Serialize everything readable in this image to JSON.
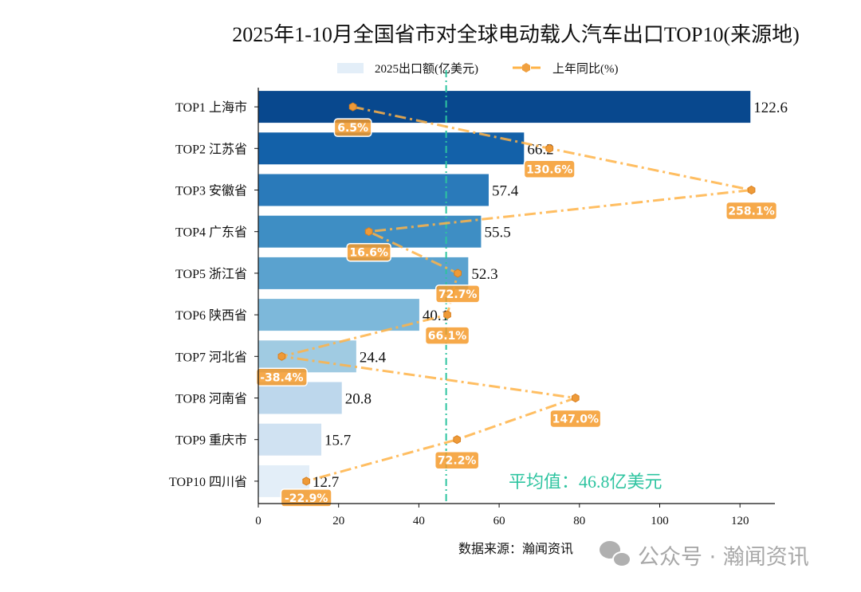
{
  "chart_data": {
    "type": "bar",
    "orientation": "horizontal",
    "title": "2025年1-10月全国省市对全球电动载人汽车出口TOP10(来源地)",
    "categories": [
      "TOP1 上海市",
      "TOP2 江苏省",
      "TOP3 安徽省",
      "TOP4 广东省",
      "TOP5 浙江省",
      "TOP6 陕西省",
      "TOP7 河北省",
      "TOP8 河南省",
      "TOP9 重庆市",
      "TOP10 四川省"
    ],
    "series": [
      {
        "name": "2025出口额(亿美元)",
        "type": "bar",
        "values": [
          122.6,
          66.2,
          57.4,
          55.5,
          52.3,
          40.1,
          24.4,
          20.8,
          15.7,
          12.7
        ],
        "colors": [
          "#08488e",
          "#1361a9",
          "#2a7aba",
          "#3e8ec4",
          "#5aa2cf",
          "#7db8da",
          "#a0cbe2",
          "#bdd7ec",
          "#d0e2f2",
          "#e3eef8"
        ]
      },
      {
        "name": "上年同比(%)",
        "type": "line",
        "values": [
          6.5,
          130.6,
          258.1,
          16.6,
          72.7,
          66.1,
          -38.4,
          147.0,
          72.2,
          -22.9
        ],
        "color": "#ffb347",
        "data_labels": [
          "6.5%",
          "130.6%",
          "258.1%",
          "16.6%",
          "72.7%",
          "66.1%",
          "-38.4%",
          "147.0%",
          "72.2%",
          "-22.9%"
        ]
      }
    ],
    "value_labels": [
      "122.6",
      "66.2",
      "57.4",
      "55.5",
      "52.3",
      "40.1",
      "24.4",
      "20.8",
      "15.7",
      "12.7"
    ],
    "xlim": [
      0,
      128.7
    ],
    "secondary_xlim": [
      -53.2,
      272.9
    ],
    "xticks": [
      0,
      20,
      40,
      60,
      80,
      100,
      120
    ],
    "xtick_labels": [
      "0",
      "20",
      "40",
      "60",
      "80",
      "100",
      "120"
    ],
    "average": {
      "value": 46.8,
      "label": "平均值：46.8亿美元",
      "color": "#2ec4a0"
    },
    "legend_placement": "top-center",
    "grid": false,
    "source": "数据来源：瀚闻资讯",
    "watermark": "公众号 · 瀚闻资讯"
  }
}
